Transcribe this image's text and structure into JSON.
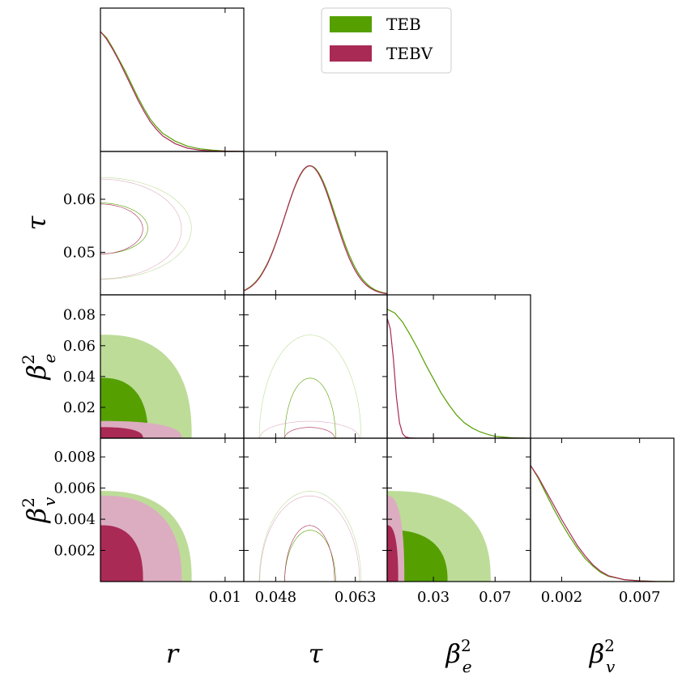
{
  "chart_data": {
    "type": "corner",
    "parameters": [
      {
        "id": "r",
        "label": "r"
      },
      {
        "id": "tau",
        "label": "τ"
      },
      {
        "id": "be2",
        "label": "β",
        "sub": "e",
        "sup": "2"
      },
      {
        "id": "bv2",
        "label": "β",
        "sub": "v",
        "sup": "2"
      }
    ],
    "ranges": {
      "r": [
        0,
        0.0115
      ],
      "tau": [
        0.042,
        0.069
      ],
      "be2": [
        0,
        0.093
      ],
      "bv2": [
        0,
        0.0092
      ]
    },
    "ticks": {
      "r": [
        0.01
      ],
      "tau": [
        0.048,
        0.063
      ],
      "tau_y": [
        0.05,
        0.06
      ],
      "be2": [
        0.03,
        0.07
      ],
      "be2_y": [
        0.02,
        0.04,
        0.06,
        0.08
      ],
      "bv2": [
        0.002,
        0.007
      ],
      "bv2_y": [
        0.002,
        0.004,
        0.006,
        0.008
      ]
    },
    "tick_labels": {
      "r": [
        "0.01"
      ],
      "tau": [
        "0.048",
        "0.063"
      ],
      "tau_y": [
        "0.05",
        "0.06"
      ],
      "be2": [
        "0.03",
        "0.07"
      ],
      "be2_y": [
        "0.02",
        "0.04",
        "0.06",
        "0.08"
      ],
      "bv2": [
        "0.002",
        "0.007"
      ],
      "bv2_y": [
        "0.002",
        "0.004",
        "0.006",
        "0.008"
      ]
    },
    "series": [
      {
        "name": "TEB",
        "color": "#55a000",
        "color_outer": "#bddc98",
        "stats": {
          "r": {
            "upper68": 0.0038,
            "upper95": 0.0073
          },
          "tau": {
            "mean": 0.0545,
            "sigma": 0.0048
          },
          "be2": {
            "upper68": 0.039,
            "upper95": 0.067
          },
          "bv2": {
            "upper68": 0.0033,
            "upper95": 0.0058
          }
        },
        "marginals": {
          "r": [
            [
              0,
              0.93
            ],
            [
              0.0005,
              0.88
            ],
            [
              0.001,
              0.8
            ],
            [
              0.0015,
              0.71
            ],
            [
              0.002,
              0.62
            ],
            [
              0.0025,
              0.52
            ],
            [
              0.003,
              0.42
            ],
            [
              0.0035,
              0.33
            ],
            [
              0.004,
              0.25
            ],
            [
              0.0045,
              0.19
            ],
            [
              0.005,
              0.14
            ],
            [
              0.006,
              0.08
            ],
            [
              0.007,
              0.04
            ],
            [
              0.008,
              0.02
            ],
            [
              0.009,
              0.01
            ],
            [
              0.01,
              0.003
            ],
            [
              0.0115,
              0
            ]
          ],
          "be2": [
            [
              0,
              1.0
            ],
            [
              0.005,
              0.97
            ],
            [
              0.01,
              0.9
            ],
            [
              0.015,
              0.8
            ],
            [
              0.02,
              0.69
            ],
            [
              0.025,
              0.57
            ],
            [
              0.03,
              0.46
            ],
            [
              0.035,
              0.35
            ],
            [
              0.04,
              0.26
            ],
            [
              0.045,
              0.18
            ],
            [
              0.05,
              0.12
            ],
            [
              0.055,
              0.08
            ],
            [
              0.06,
              0.05
            ],
            [
              0.065,
              0.03
            ],
            [
              0.07,
              0.015
            ],
            [
              0.08,
              0.004
            ],
            [
              0.09,
              0
            ]
          ],
          "bv2": [
            [
              0,
              0.9
            ],
            [
              0.0005,
              0.8
            ],
            [
              0.001,
              0.68
            ],
            [
              0.0015,
              0.56
            ],
            [
              0.002,
              0.45
            ],
            [
              0.0025,
              0.35
            ],
            [
              0.003,
              0.26
            ],
            [
              0.0035,
              0.18
            ],
            [
              0.004,
              0.12
            ],
            [
              0.0045,
              0.07
            ],
            [
              0.005,
              0.04
            ],
            [
              0.006,
              0.015
            ],
            [
              0.007,
              0.006
            ],
            [
              0.008,
              0.002
            ],
            [
              0.0092,
              0
            ]
          ]
        }
      },
      {
        "name": "TEBV",
        "color": "#a92a55",
        "color_outer": "#dcadc1",
        "stats": {
          "r": {
            "upper68": 0.0034,
            "upper95": 0.0065
          },
          "tau": {
            "mean": 0.0544,
            "sigma": 0.0047
          },
          "be2": {
            "upper68": 0.007,
            "upper95": 0.011
          },
          "bv2": {
            "upper68": 0.0036,
            "upper95": 0.0055
          }
        },
        "marginals": {
          "r": [
            [
              0,
              0.93
            ],
            [
              0.0005,
              0.87
            ],
            [
              0.001,
              0.79
            ],
            [
              0.0015,
              0.7
            ],
            [
              0.002,
              0.6
            ],
            [
              0.0025,
              0.5
            ],
            [
              0.003,
              0.4
            ],
            [
              0.0035,
              0.31
            ],
            [
              0.004,
              0.23
            ],
            [
              0.0045,
              0.17
            ],
            [
              0.005,
              0.12
            ],
            [
              0.006,
              0.06
            ],
            [
              0.007,
              0.025
            ],
            [
              0.008,
              0.01
            ],
            [
              0.009,
              0.004
            ],
            [
              0.0115,
              0
            ]
          ],
          "be2": [
            [
              0,
              0.93
            ],
            [
              0.002,
              0.85
            ],
            [
              0.004,
              0.62
            ],
            [
              0.006,
              0.32
            ],
            [
              0.008,
              0.12
            ],
            [
              0.01,
              0.035
            ],
            [
              0.012,
              0.01
            ],
            [
              0.015,
              0.002
            ],
            [
              0.02,
              0
            ],
            [
              0.09,
              0
            ]
          ],
          "bv2": [
            [
              0,
              0.9
            ],
            [
              0.0005,
              0.81
            ],
            [
              0.001,
              0.7
            ],
            [
              0.0015,
              0.59
            ],
            [
              0.002,
              0.48
            ],
            [
              0.0025,
              0.38
            ],
            [
              0.003,
              0.28
            ],
            [
              0.0035,
              0.2
            ],
            [
              0.004,
              0.13
            ],
            [
              0.0045,
              0.08
            ],
            [
              0.005,
              0.045
            ],
            [
              0.006,
              0.015
            ],
            [
              0.007,
              0.005
            ],
            [
              0.008,
              0.001
            ],
            [
              0.0092,
              0
            ]
          ]
        }
      }
    ],
    "legend": {
      "position": "top-center"
    }
  }
}
